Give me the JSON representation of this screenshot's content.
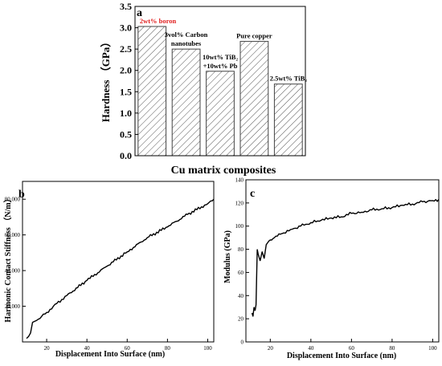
{
  "chart_data": [
    {
      "panel": "a",
      "type": "bar",
      "ylabel": "Hardness （GPa）",
      "xlabel": "Cu matrix composites",
      "ylim": [
        0,
        3.5
      ],
      "yticks": [
        "0.0",
        "0.5",
        "1.0",
        "1.5",
        "2.0",
        "2.5",
        "3.0",
        "3.5"
      ],
      "categories": [
        {
          "lines": [
            "2wt% boron"
          ],
          "color": "#e02020"
        },
        {
          "lines": [
            "3vol% Carbon",
            "nanotubes"
          ],
          "color": "#000000"
        },
        {
          "lines": [
            "10wt% TiB₂",
            "+10wt% Pb"
          ],
          "color": "#000000"
        },
        {
          "lines": [
            "Pure copper"
          ],
          "color": "#000000"
        },
        {
          "lines": [
            "2.5wt% TiB₂"
          ],
          "color": "#000000"
        }
      ],
      "values": [
        3.03,
        2.5,
        1.98,
        2.68,
        1.68
      ],
      "bar_pattern": "diagonal-hatch"
    },
    {
      "panel": "b",
      "type": "line",
      "ylabel": "Harmonic Contact Stiffness （N/m）",
      "xlabel": "Displacement Into Surface (nm)",
      "xlim": [
        8,
        103
      ],
      "ylim": [
        0,
        90000
      ],
      "xticks": [
        20,
        40,
        60,
        80,
        100
      ],
      "yticks": [
        20000,
        40000,
        60000,
        80000
      ],
      "ytick_labels": [
        "20,000",
        "40,000",
        "60,000",
        "80,000"
      ],
      "x": [
        10,
        11,
        12,
        13,
        14,
        15,
        20,
        25,
        30,
        40,
        50,
        60,
        70,
        80,
        90,
        100,
        103
      ],
      "y": [
        2000,
        3000,
        5000,
        11000,
        11500,
        12000,
        16500,
        21500,
        26000,
        34500,
        42500,
        50500,
        58500,
        64500,
        71500,
        77500,
        80000
      ]
    },
    {
      "panel": "c",
      "type": "line",
      "ylabel": "Modulus (GPa)",
      "xlabel": "Displacement Into Surface (nm)",
      "xlim": [
        8,
        103
      ],
      "ylim": [
        0,
        140
      ],
      "xticks": [
        20,
        40,
        60,
        80,
        100
      ],
      "yticks": [
        0,
        20,
        40,
        60,
        80,
        100,
        120,
        140
      ],
      "x": [
        11,
        11.5,
        12,
        12.5,
        13,
        13.3,
        13.6,
        14,
        15,
        16,
        17,
        18,
        20,
        22,
        25,
        30,
        35,
        40,
        45,
        50,
        55,
        60,
        65,
        70,
        75,
        80,
        85,
        90,
        95,
        100,
        103
      ],
      "y": [
        25,
        22,
        30,
        27,
        32,
        58,
        80,
        76,
        70,
        78,
        72,
        84,
        88,
        90,
        93,
        97,
        100,
        103,
        105,
        107,
        108,
        111,
        112,
        114,
        115,
        116,
        118,
        119,
        121,
        122,
        123
      ]
    }
  ]
}
